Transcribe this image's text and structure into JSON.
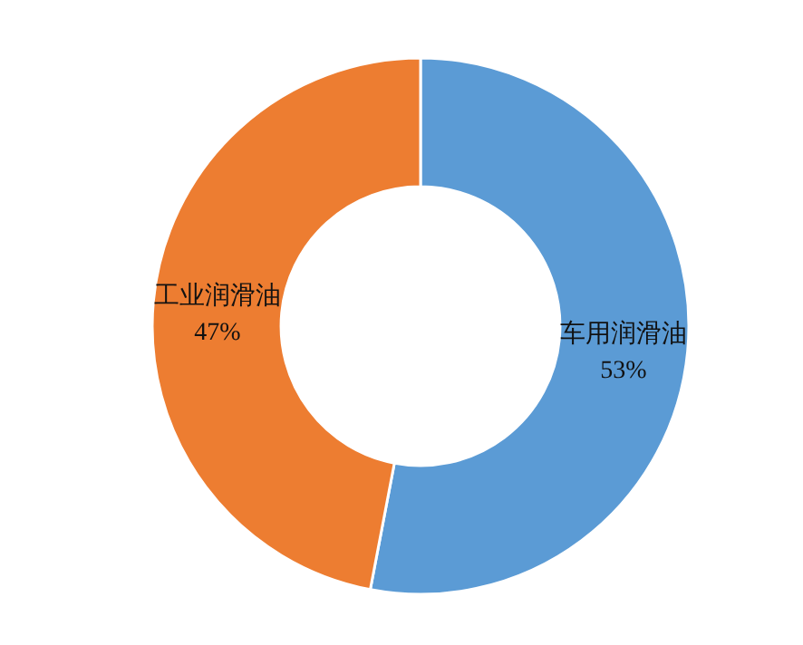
{
  "chart_data": {
    "type": "donut",
    "categories": [
      "车用润滑油",
      "工业润滑油"
    ],
    "values": [
      53,
      47
    ],
    "colors": [
      "#5b9bd5",
      "#ed7d31"
    ],
    "value_labels": [
      "53%",
      "47%"
    ]
  }
}
